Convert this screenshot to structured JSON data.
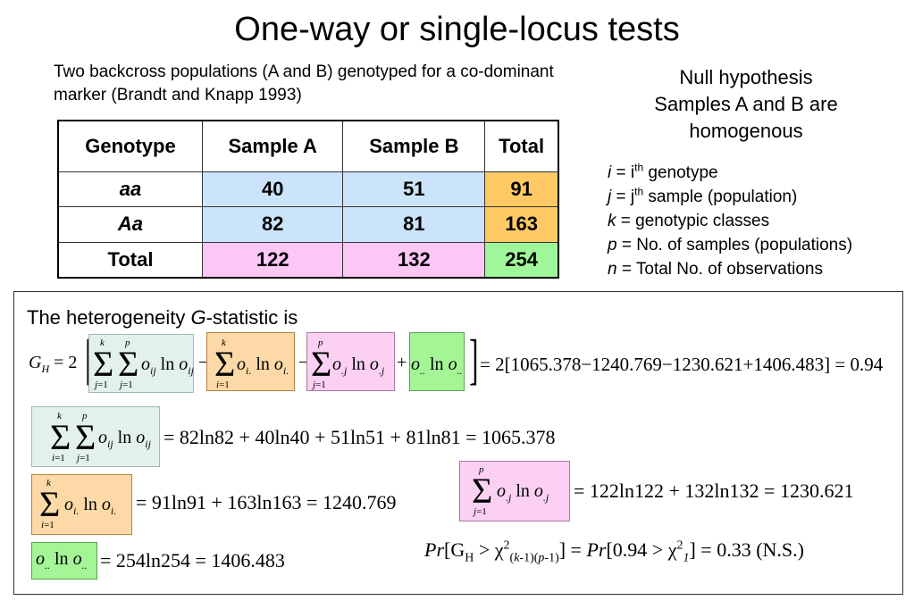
{
  "title": "One-way or single-locus tests",
  "intro": "Two backcross populations (A and B) genotyped for a co-dominant marker (Brandt and Knapp 1993)",
  "null_hypothesis": [
    "Null hypothesis",
    "Samples A and B are",
    "homogenous"
  ],
  "definitions": [
    {
      "symbol": "i",
      "eq": " = i",
      "sup": "th",
      "rest": " genotype"
    },
    {
      "symbol": "j",
      "eq": " = j",
      "sup": "th",
      "rest": " sample (population)"
    },
    {
      "symbol": "k",
      "eq": " = genotypic classes",
      "sup": "",
      "rest": ""
    },
    {
      "symbol": "p",
      "eq": " = No. of samples (populations)",
      "sup": "",
      "rest": ""
    },
    {
      "symbol": "n",
      "eq": " = Total No. of observations",
      "sup": "",
      "rest": ""
    }
  ],
  "table": {
    "headers": [
      "Genotype",
      "Sample A",
      "Sample B",
      "Total"
    ],
    "rows": [
      [
        "aa",
        "40",
        "51",
        "91"
      ],
      [
        "Aa",
        "82",
        "81",
        "163"
      ],
      [
        "Total",
        "122",
        "132",
        "254"
      ]
    ]
  },
  "heterogeneity_label": "The heterogeneity G-statistic is",
  "equations": {
    "gh_result": "= 2[1065.378−1240.769−1230.621+1406.483] = 0.94",
    "eq1_rhs": "= 82ln82 + 40ln40 + 51ln51 + 81ln81 = 1065.378",
    "eq2_rhs": "= 91ln91 + 163ln163 = 1240.769",
    "eq3_rhs": "= 122ln122 + 132ln132 = 1230.621",
    "eq4_rhs": "= 254ln254 = 1406.483",
    "probability": "[G",
    "probability_text": "Pr[GH > χ2(k-1)(p-1)] = Pr[0.94 > χ21] = 0.33 (N.S.)"
  },
  "colors": {
    "blue": "#cce4fb",
    "orange": "#ffca66",
    "pink": "#fcc7f5",
    "green": "#a0f799"
  }
}
